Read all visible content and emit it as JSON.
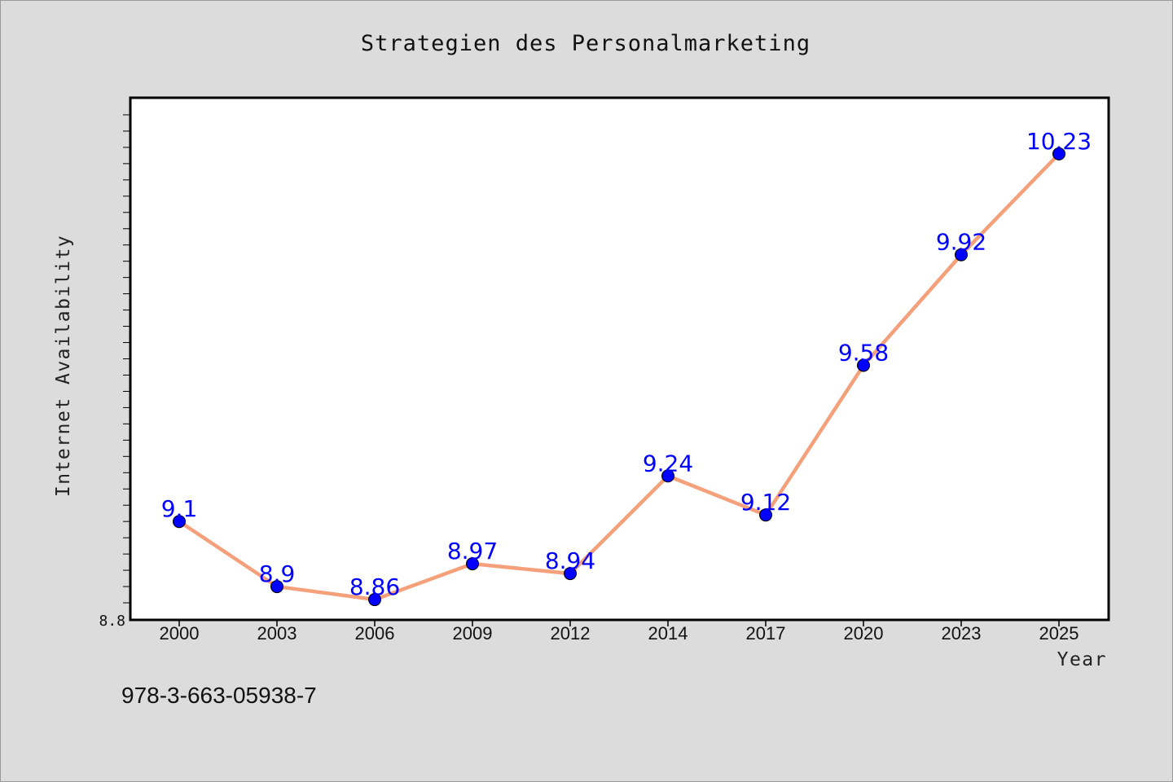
{
  "chart_data": {
    "type": "line",
    "title": "Strategien des Personalmarketing",
    "xlabel": "Year",
    "ylabel": "Internet Availability",
    "categories": [
      "2000",
      "2003",
      "2006",
      "2009",
      "2012",
      "2014",
      "2017",
      "2020",
      "2023",
      "2025"
    ],
    "series": [
      {
        "values": [
          9.1,
          8.9,
          8.86,
          8.97,
          8.94,
          9.24,
          9.12,
          9.58,
          9.92,
          10.23
        ]
      }
    ],
    "data_labels": [
      "9.1",
      "8.9",
      "8.86",
      "8.97",
      "8.94",
      "9.24",
      "9.12",
      "9.58",
      "9.92",
      "10.23"
    ],
    "ylim": [
      8.8,
      10.4
    ],
    "y_tick_labels": [
      "8.8"
    ],
    "grid": false,
    "legend": "none",
    "line_color": "#f4a07a",
    "marker_color": "#0000ff",
    "label_color": "#0000ff"
  },
  "footer": {
    "identifier": "978-3-663-05938-7"
  }
}
